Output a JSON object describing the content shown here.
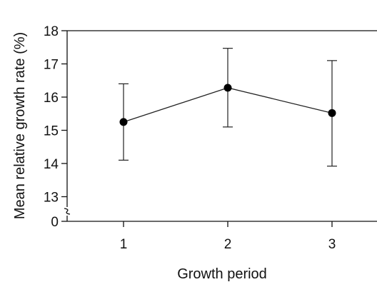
{
  "chart_data": {
    "type": "line",
    "title": "",
    "xlabel": "Growth period",
    "ylabel": "Mean relative growth rate (%)",
    "x": [
      1,
      2,
      3
    ],
    "series": [
      {
        "values": [
          15.25,
          16.28,
          15.52
        ],
        "error_upper": [
          16.4,
          17.47,
          17.1
        ],
        "error_lower": [
          14.1,
          15.1,
          13.92
        ]
      }
    ],
    "x_ticks": [
      "1",
      "2",
      "3"
    ],
    "y_ticks": [
      "0",
      "13",
      "14",
      "15",
      "16",
      "17",
      "18"
    ],
    "ylim": [
      12.3,
      18
    ],
    "y_axis_break": "between 0 and 13",
    "grid": false,
    "legend": "none",
    "colors": {
      "line": "#222222",
      "marker": "#000000",
      "axis": "#111111"
    }
  }
}
